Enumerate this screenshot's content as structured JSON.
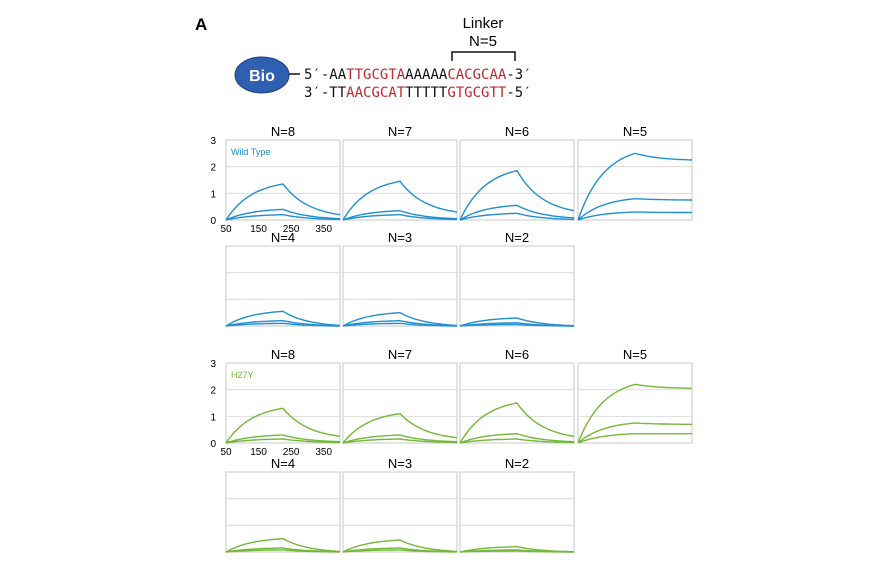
{
  "figure_letter": "A",
  "linker": {
    "title": "Linker",
    "n_label": "N=5"
  },
  "bio_label": "Bio",
  "sequence": {
    "top": [
      {
        "t": "5′-AA",
        "c": "black"
      },
      {
        "t": "TTGCGTA",
        "c": "red"
      },
      {
        "t": "AAAAA",
        "c": "black"
      },
      {
        "t": "CACGCAA",
        "c": "red"
      },
      {
        "t": "-3′",
        "c": "black"
      }
    ],
    "bottom": [
      {
        "t": "3′-TT",
        "c": "black"
      },
      {
        "t": "AACGCAT",
        "c": "red"
      },
      {
        "t": "TTTTT",
        "c": "black"
      },
      {
        "t": "GTGCGTT",
        "c": "red"
      },
      {
        "t": "-5′",
        "c": "black"
      }
    ]
  },
  "colors": {
    "red": "#c0282c",
    "black": "#111111",
    "wild_type": "#1f8fd0",
    "h27y": "#72b837",
    "bio_fill": "#2f5fb0"
  },
  "chart_data": [
    {
      "type": "line",
      "group": "Wild Type",
      "series_label": "Wild Type",
      "color": "#1f8fd0",
      "xlim": [
        50,
        400
      ],
      "ylim": [
        0,
        3
      ],
      "xticks": [
        "50",
        "150",
        "250",
        "350"
      ],
      "yticks": [
        "0",
        "1",
        "2",
        "3"
      ],
      "panels": [
        {
          "label": "N=8",
          "curves": [
            [
              50,
              0,
              225,
              1.35,
              400,
              0.2
            ],
            [
              50,
              0,
              225,
              0.4,
              400,
              0.05
            ],
            [
              50,
              0,
              225,
              0.2,
              400,
              0.02
            ]
          ]
        },
        {
          "label": "N=7",
          "curves": [
            [
              50,
              0,
              225,
              1.45,
              400,
              0.3
            ],
            [
              50,
              0,
              225,
              0.35,
              400,
              0.05
            ],
            [
              50,
              0,
              225,
              0.2,
              400,
              0.02
            ]
          ]
        },
        {
          "label": "N=6",
          "curves": [
            [
              50,
              0,
              225,
              1.85,
              400,
              0.35
            ],
            [
              50,
              0,
              225,
              0.55,
              400,
              0.08
            ],
            [
              50,
              0,
              225,
              0.25,
              400,
              0.02
            ]
          ]
        },
        {
          "label": "N=5",
          "curves": [
            [
              50,
              0,
              225,
              2.5,
              400,
              2.25
            ],
            [
              50,
              0,
              225,
              0.8,
              400,
              0.75
            ],
            [
              50,
              0,
              225,
              0.3,
              400,
              0.28
            ]
          ]
        },
        {
          "label": "N=4",
          "curves": [
            [
              50,
              0,
              225,
              0.55,
              400,
              0.02
            ],
            [
              50,
              0,
              225,
              0.2,
              400,
              0.01
            ],
            [
              50,
              0,
              225,
              0.1,
              400,
              0.0
            ]
          ]
        },
        {
          "label": "N=3",
          "curves": [
            [
              50,
              0,
              225,
              0.5,
              400,
              0.02
            ],
            [
              50,
              0,
              225,
              0.2,
              400,
              0.01
            ],
            [
              50,
              0,
              225,
              0.1,
              400,
              0.0
            ]
          ]
        },
        {
          "label": "N=2",
          "curves": [
            [
              50,
              0,
              225,
              0.3,
              400,
              0.01
            ],
            [
              50,
              0,
              225,
              0.12,
              400,
              0.0
            ],
            [
              50,
              0,
              225,
              0.06,
              400,
              0.0
            ]
          ]
        }
      ]
    },
    {
      "type": "line",
      "group": "H27Y",
      "series_label": "H27Y",
      "color": "#72b837",
      "xlim": [
        50,
        400
      ],
      "ylim": [
        0,
        3
      ],
      "xticks": [
        "50",
        "150",
        "250",
        "350"
      ],
      "yticks": [
        "0",
        "1",
        "2",
        "3"
      ],
      "panels": [
        {
          "label": "N=8",
          "curves": [
            [
              50,
              0,
              225,
              1.3,
              400,
              0.25
            ],
            [
              50,
              0,
              225,
              0.3,
              400,
              0.05
            ],
            [
              50,
              0,
              225,
              0.15,
              400,
              0.02
            ]
          ]
        },
        {
          "label": "N=7",
          "curves": [
            [
              50,
              0,
              225,
              1.1,
              400,
              0.2
            ],
            [
              50,
              0,
              225,
              0.3,
              400,
              0.05
            ],
            [
              50,
              0,
              225,
              0.15,
              400,
              0.02
            ]
          ]
        },
        {
          "label": "N=6",
          "curves": [
            [
              50,
              0,
              225,
              1.5,
              400,
              0.25
            ],
            [
              50,
              0,
              225,
              0.35,
              400,
              0.05
            ],
            [
              50,
              0,
              225,
              0.15,
              400,
              0.02
            ]
          ]
        },
        {
          "label": "N=5",
          "curves": [
            [
              50,
              0,
              225,
              2.2,
              400,
              2.05
            ],
            [
              50,
              0,
              225,
              0.75,
              400,
              0.7
            ],
            [
              50,
              0,
              225,
              0.35,
              400,
              0.35
            ]
          ]
        },
        {
          "label": "N=4",
          "curves": [
            [
              50,
              0,
              225,
              0.5,
              400,
              0.02
            ],
            [
              50,
              0,
              225,
              0.15,
              400,
              0.01
            ],
            [
              50,
              0,
              225,
              0.08,
              400,
              0.0
            ]
          ]
        },
        {
          "label": "N=3",
          "curves": [
            [
              50,
              0,
              225,
              0.45,
              400,
              0.02
            ],
            [
              50,
              0,
              225,
              0.15,
              400,
              0.01
            ],
            [
              50,
              0,
              225,
              0.08,
              400,
              0.0
            ]
          ]
        },
        {
          "label": "N=2",
          "curves": [
            [
              50,
              0,
              225,
              0.2,
              400,
              0.01
            ],
            [
              50,
              0,
              225,
              0.08,
              400,
              0.0
            ],
            [
              50,
              0,
              225,
              0.04,
              400,
              0.0
            ]
          ]
        }
      ]
    }
  ]
}
